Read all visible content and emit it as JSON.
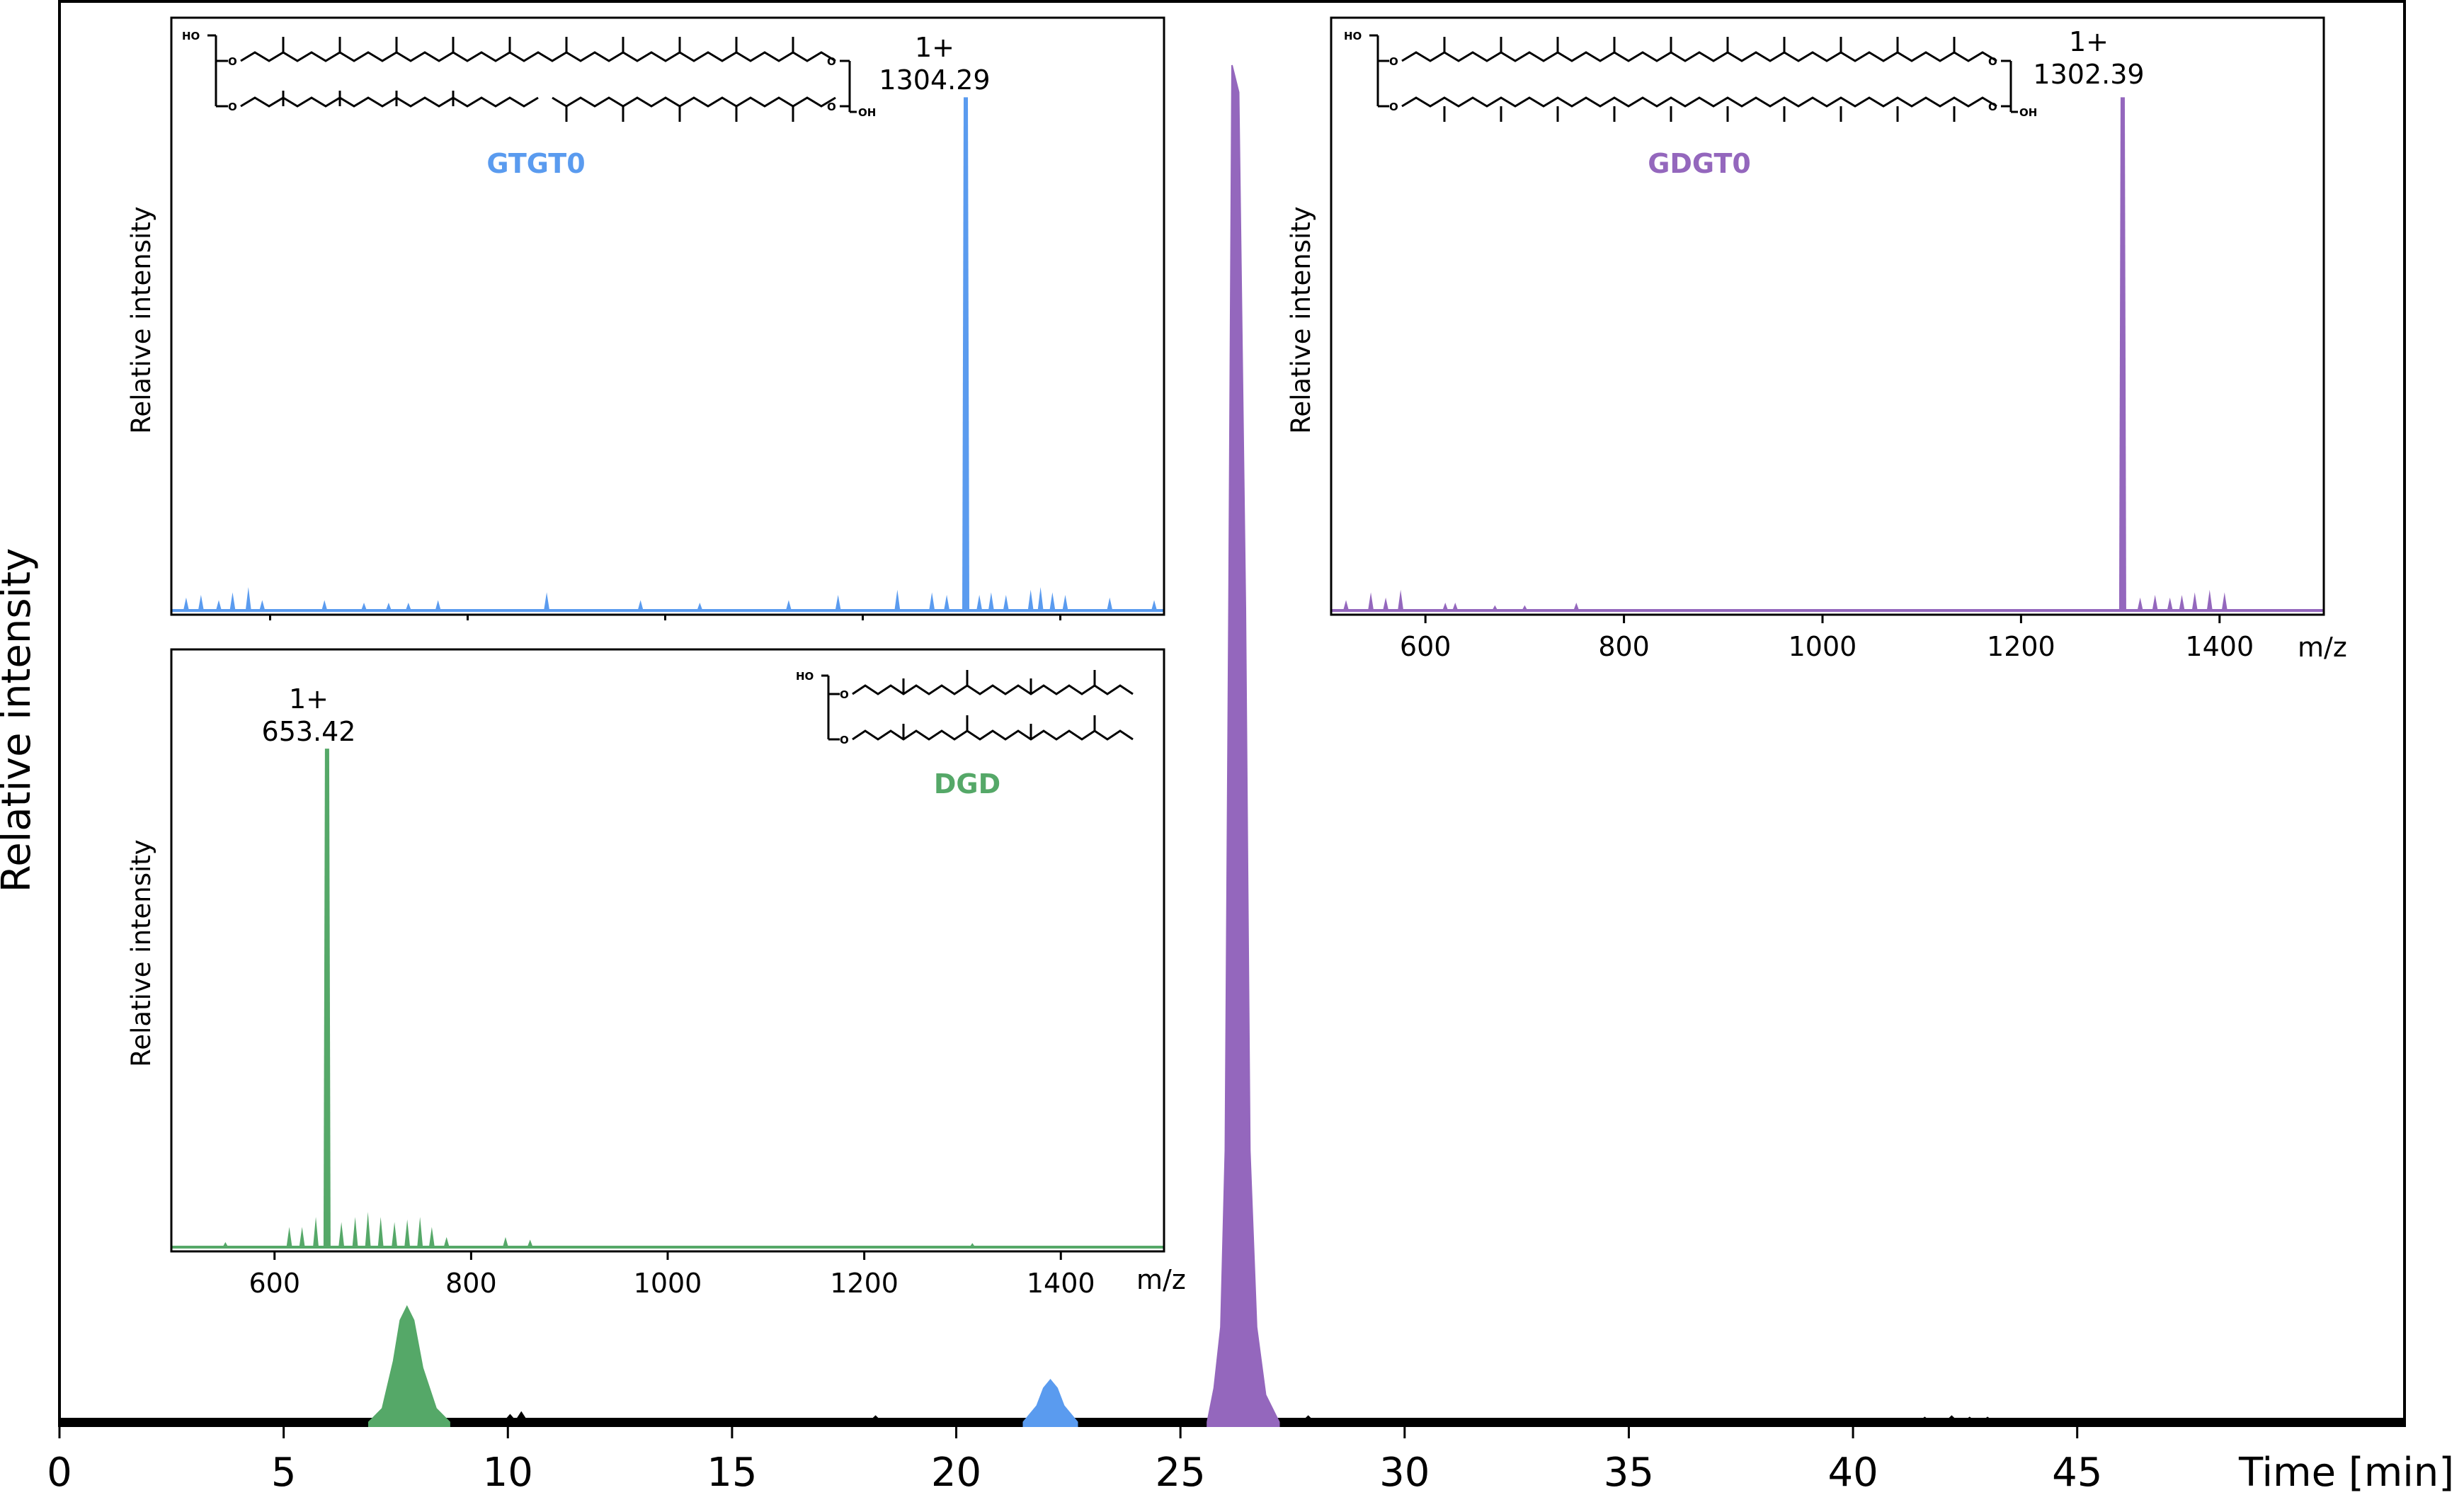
{
  "chart_data": [
    {
      "type": "area",
      "id": "chromatogram",
      "xlabel": "Time [min]",
      "ylabel": "Relative intensity",
      "xlim": [
        0,
        52.3
      ],
      "ylim": [
        0,
        1.0
      ],
      "xticks": [
        0,
        5,
        10,
        15,
        20,
        25,
        30,
        35,
        40,
        45
      ],
      "colors": {
        "baseline": "#000000",
        "DGD": "#55a868",
        "GTGT0": "#5a9bef",
        "GDGT0": "#9467bd"
      },
      "series": [
        {
          "color_key": "DGD",
          "x": [
            6.9,
            7.2,
            7.45,
            7.6,
            7.75,
            7.9,
            8.1,
            8.4,
            8.7
          ],
          "y": [
            0.0,
            0.01,
            0.045,
            0.075,
            0.085,
            0.075,
            0.04,
            0.01,
            0.0
          ]
        },
        {
          "color_key": "GTGT0",
          "x": [
            21.5,
            21.8,
            21.95,
            22.1,
            22.25,
            22.4,
            22.7
          ],
          "y": [
            0.0,
            0.012,
            0.025,
            0.031,
            0.025,
            0.012,
            0.0
          ]
        },
        {
          "color_key": "GDGT0",
          "x": [
            25.6,
            25.75,
            25.9,
            26.0,
            26.08,
            26.15,
            26.3,
            26.45,
            26.55,
            26.7,
            26.9,
            27.2
          ],
          "y": [
            0.0,
            0.025,
            0.07,
            0.2,
            0.6,
            1.0,
            0.98,
            0.6,
            0.2,
            0.07,
            0.02,
            0.0
          ]
        }
      ],
      "baseline_noise": [
        {
          "x": 10.05,
          "y": 0.006
        },
        {
          "x": 10.3,
          "y": 0.008
        },
        {
          "x": 18.2,
          "y": 0.005
        },
        {
          "x": 27.85,
          "y": 0.005
        },
        {
          "x": 41.6,
          "y": 0.004
        },
        {
          "x": 42.2,
          "y": 0.005
        },
        {
          "x": 42.6,
          "y": 0.004
        },
        {
          "x": 43.0,
          "y": 0.004
        }
      ]
    },
    {
      "type": "area",
      "id": "ms-gtgt0",
      "compound": "GTGT0",
      "color_key": "GTGT0",
      "ylabel": "Relative intensity",
      "xlim": [
        500,
        1505
      ],
      "ylim": [
        0,
        1.0
      ],
      "peak": {
        "mz": 1304.29,
        "charge": "1+",
        "label": "1304.29",
        "y": 0.99
      },
      "noise": [
        {
          "x": 515,
          "y": 0.025
        },
        {
          "x": 530,
          "y": 0.03
        },
        {
          "x": 548,
          "y": 0.02
        },
        {
          "x": 562,
          "y": 0.035
        },
        {
          "x": 578,
          "y": 0.045
        },
        {
          "x": 592,
          "y": 0.02
        },
        {
          "x": 655,
          "y": 0.02
        },
        {
          "x": 695,
          "y": 0.015
        },
        {
          "x": 720,
          "y": 0.015
        },
        {
          "x": 740,
          "y": 0.015
        },
        {
          "x": 770,
          "y": 0.02
        },
        {
          "x": 880,
          "y": 0.035
        },
        {
          "x": 975,
          "y": 0.02
        },
        {
          "x": 1035,
          "y": 0.015
        },
        {
          "x": 1125,
          "y": 0.02
        },
        {
          "x": 1175,
          "y": 0.03
        },
        {
          "x": 1235,
          "y": 0.04
        },
        {
          "x": 1270,
          "y": 0.035
        },
        {
          "x": 1285,
          "y": 0.03
        },
        {
          "x": 1318,
          "y": 0.03
        },
        {
          "x": 1330,
          "y": 0.035
        },
        {
          "x": 1345,
          "y": 0.03
        },
        {
          "x": 1370,
          "y": 0.04
        },
        {
          "x": 1380,
          "y": 0.045
        },
        {
          "x": 1392,
          "y": 0.035
        },
        {
          "x": 1405,
          "y": 0.03
        },
        {
          "x": 1450,
          "y": 0.025
        },
        {
          "x": 1495,
          "y": 0.02
        }
      ]
    },
    {
      "type": "area",
      "id": "ms-gdgt0",
      "compound": "GDGT0",
      "color_key": "GDGT0",
      "xlabel": "m/z",
      "ylabel": "Relative intensity",
      "xlim": [
        505,
        1505
      ],
      "ylim": [
        0,
        1.0
      ],
      "xticks": [
        600,
        800,
        1000,
        1200,
        1400
      ],
      "peak": {
        "mz": 1302.39,
        "charge": "1+",
        "label": "1302.39",
        "y": 0.99
      },
      "noise": [
        {
          "x": 520,
          "y": 0.02
        },
        {
          "x": 545,
          "y": 0.035
        },
        {
          "x": 560,
          "y": 0.025
        },
        {
          "x": 575,
          "y": 0.04
        },
        {
          "x": 620,
          "y": 0.015
        },
        {
          "x": 630,
          "y": 0.015
        },
        {
          "x": 670,
          "y": 0.01
        },
        {
          "x": 700,
          "y": 0.01
        },
        {
          "x": 752,
          "y": 0.015
        },
        {
          "x": 1320,
          "y": 0.025
        },
        {
          "x": 1335,
          "y": 0.03
        },
        {
          "x": 1350,
          "y": 0.025
        },
        {
          "x": 1362,
          "y": 0.03
        },
        {
          "x": 1375,
          "y": 0.035
        },
        {
          "x": 1390,
          "y": 0.04
        },
        {
          "x": 1405,
          "y": 0.035
        }
      ]
    },
    {
      "type": "area",
      "id": "ms-dgd",
      "compound": "DGD",
      "color_key": "DGD",
      "xlabel": "m/z",
      "ylabel": "Relative intensity",
      "xlim": [
        495,
        1505
      ],
      "ylim": [
        0,
        1.0
      ],
      "xticks": [
        600,
        800,
        1000,
        1200,
        1400
      ],
      "peak": {
        "mz": 653.42,
        "charge": "1+",
        "label": "653.42",
        "y": 0.99
      },
      "noise": [
        {
          "x": 550,
          "y": 0.01
        },
        {
          "x": 615,
          "y": 0.04
        },
        {
          "x": 628,
          "y": 0.04
        },
        {
          "x": 642,
          "y": 0.06
        },
        {
          "x": 668,
          "y": 0.05
        },
        {
          "x": 682,
          "y": 0.06
        },
        {
          "x": 695,
          "y": 0.07
        },
        {
          "x": 708,
          "y": 0.06
        },
        {
          "x": 722,
          "y": 0.05
        },
        {
          "x": 735,
          "y": 0.055
        },
        {
          "x": 748,
          "y": 0.06
        },
        {
          "x": 760,
          "y": 0.04
        },
        {
          "x": 775,
          "y": 0.02
        },
        {
          "x": 835,
          "y": 0.02
        },
        {
          "x": 860,
          "y": 0.015
        },
        {
          "x": 1310,
          "y": 0.008
        }
      ]
    }
  ]
}
